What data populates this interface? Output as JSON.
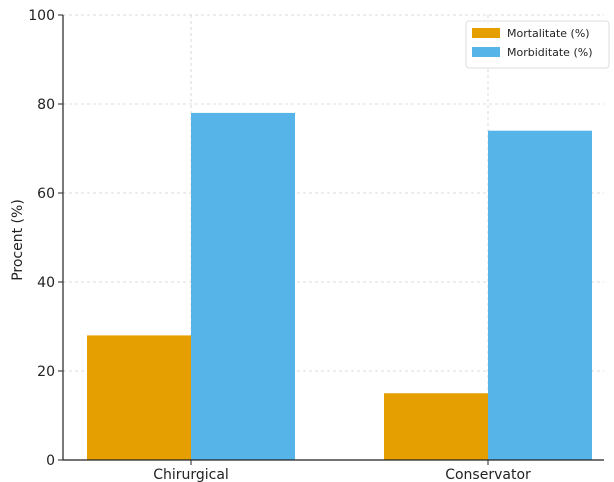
{
  "chart_data": {
    "type": "bar",
    "categories": [
      "Chirurgical",
      "Conservator"
    ],
    "series": [
      {
        "name": "Mortalitate (%)",
        "values": [
          28,
          15
        ],
        "color": "#E69F00"
      },
      {
        "name": "Morbiditate (%)",
        "values": [
          78,
          74
        ],
        "color": "#56B4E9"
      }
    ],
    "title": "",
    "xlabel": "",
    "ylabel": "Procent (%)",
    "ylim": [
      0,
      100
    ],
    "yticks": [
      0,
      20,
      40,
      60,
      80,
      100
    ],
    "grid": true,
    "legend_position": "top-right"
  }
}
